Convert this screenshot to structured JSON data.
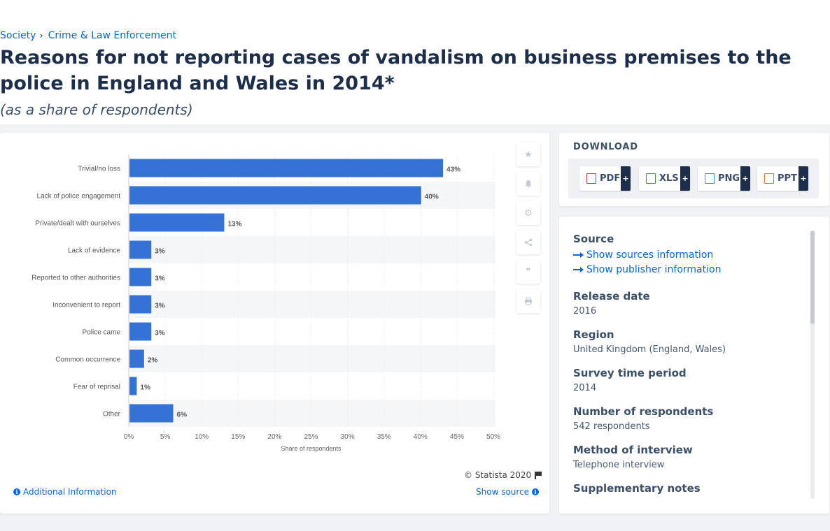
{
  "breadcrumb": {
    "items": [
      "Society",
      "Crime & Law Enforcement"
    ],
    "separator": "›"
  },
  "page": {
    "title": "Reasons for not reporting cases of vandalism on business premises to the police in England and Wales in 2014*",
    "subtitle": "(as a share of respondents)"
  },
  "chart_data": {
    "type": "bar",
    "orientation": "horizontal",
    "categories": [
      "Trivial/no loss",
      "Lack of police engagement",
      "Private/dealt with ourselves",
      "Lack of evidence",
      "Reported to other authorities",
      "Inconvenient to report",
      "Police came",
      "Common occurrence",
      "Fear of reprisal",
      "Other"
    ],
    "values": [
      43,
      40,
      13,
      3,
      3,
      3,
      3,
      2,
      1,
      6
    ],
    "data_labels": [
      "43%",
      "40%",
      "13%",
      "3%",
      "3%",
      "3%",
      "3%",
      "2%",
      "1%",
      "6%"
    ],
    "x_ticks": [
      "0%",
      "5%",
      "10%",
      "15%",
      "20%",
      "25%",
      "30%",
      "35%",
      "40%",
      "45%",
      "50%"
    ],
    "xlim": [
      0,
      50
    ],
    "xlabel": "Share of respondents",
    "bar_color": "#3572d6",
    "grid": true
  },
  "chart_footer": {
    "copyright": "© Statista 2020",
    "additional_info": "Additional Information",
    "show_source": "Show source"
  },
  "toolbar": {
    "icons": [
      "star-icon",
      "bell-icon",
      "gear-icon",
      "share-icon",
      "quote-icon",
      "print-icon"
    ]
  },
  "download": {
    "title": "DOWNLOAD",
    "buttons": [
      {
        "label": "PDF",
        "plus": "+",
        "color": "#d23a3a"
      },
      {
        "label": "XLS",
        "plus": "+",
        "color": "#3f9a3f"
      },
      {
        "label": "PNG",
        "plus": "+",
        "color": "#3d8ad1"
      },
      {
        "label": "PPT",
        "plus": "+",
        "color": "#e8772e"
      }
    ]
  },
  "source": {
    "heading": "Source",
    "link_sources": "Show sources information",
    "link_publisher": "Show publisher information",
    "release_date_label": "Release date",
    "release_date": "2016",
    "region_label": "Region",
    "region": "United Kingdom (England, Wales)",
    "survey_period_label": "Survey time period",
    "survey_period": "2014",
    "respondents_label": "Number of respondents",
    "respondents": "542 respondents",
    "method_label": "Method of interview",
    "method": "Telephone interview",
    "notes_label": "Supplementary notes"
  }
}
